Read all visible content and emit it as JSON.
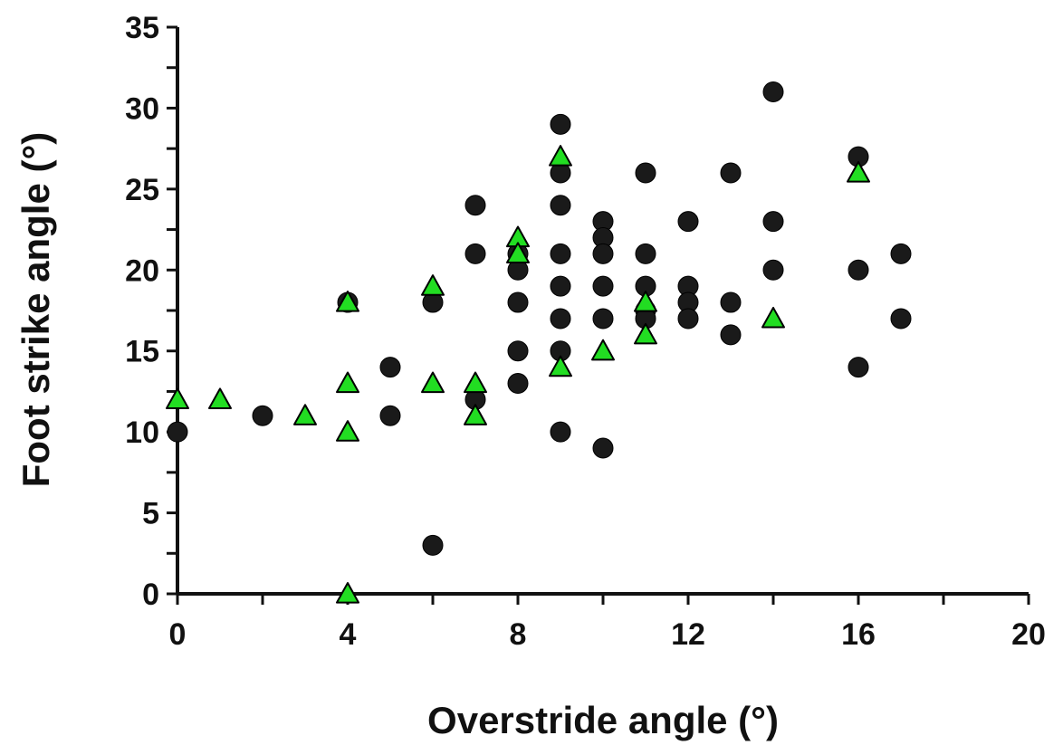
{
  "chart_data": {
    "type": "scatter",
    "xlabel": "Overstride angle (°)",
    "ylabel": "Foot strike angle (°)",
    "xlim": [
      0,
      20
    ],
    "ylim": [
      0,
      35
    ],
    "x_ticks": [
      0,
      4,
      8,
      12,
      16,
      20
    ],
    "x_tick_labels": [
      "0",
      "4",
      "8",
      "12",
      "16",
      "20"
    ],
    "y_ticks": [
      0,
      5,
      10,
      15,
      20,
      25,
      30,
      35
    ],
    "y_tick_labels": [
      "0",
      "5",
      "10",
      "15",
      "20",
      "25",
      "30",
      "35"
    ],
    "grid": false,
    "series": [
      {
        "marker": "circle",
        "color": "#1a1a1a",
        "points": [
          [
            0,
            10
          ],
          [
            2,
            11
          ],
          [
            4,
            18
          ],
          [
            5,
            14
          ],
          [
            5,
            11
          ],
          [
            6,
            18
          ],
          [
            6,
            3
          ],
          [
            7,
            24
          ],
          [
            7,
            21
          ],
          [
            7,
            12
          ],
          [
            8,
            21
          ],
          [
            8,
            20
          ],
          [
            8,
            18
          ],
          [
            8,
            15
          ],
          [
            8,
            13
          ],
          [
            9,
            29
          ],
          [
            9,
            26
          ],
          [
            9,
            24
          ],
          [
            9,
            21
          ],
          [
            9,
            19
          ],
          [
            9,
            17
          ],
          [
            9,
            15
          ],
          [
            9,
            10
          ],
          [
            10,
            23
          ],
          [
            10,
            22
          ],
          [
            10,
            21
          ],
          [
            10,
            19
          ],
          [
            10,
            17
          ],
          [
            10,
            9
          ],
          [
            11,
            26
          ],
          [
            11,
            21
          ],
          [
            11,
            19
          ],
          [
            11,
            17.5
          ],
          [
            11,
            17
          ],
          [
            12,
            23
          ],
          [
            12,
            19
          ],
          [
            12,
            18
          ],
          [
            12,
            17
          ],
          [
            13,
            26
          ],
          [
            13,
            18
          ],
          [
            13,
            16
          ],
          [
            14,
            31
          ],
          [
            14,
            23
          ],
          [
            14,
            20
          ],
          [
            16,
            27
          ],
          [
            16,
            20
          ],
          [
            16,
            14
          ],
          [
            17,
            21
          ],
          [
            17,
            17
          ]
        ]
      },
      {
        "marker": "triangle",
        "color": "#22dd22",
        "points": [
          [
            0,
            12
          ],
          [
            1,
            12
          ],
          [
            3,
            11
          ],
          [
            4,
            18
          ],
          [
            4,
            13
          ],
          [
            4,
            10
          ],
          [
            4,
            0
          ],
          [
            6,
            19
          ],
          [
            6,
            13
          ],
          [
            7,
            13
          ],
          [
            7,
            11
          ],
          [
            8,
            22
          ],
          [
            8,
            21
          ],
          [
            9,
            27
          ],
          [
            9,
            14
          ],
          [
            10,
            15
          ],
          [
            11,
            18
          ],
          [
            11,
            16
          ],
          [
            14,
            17
          ],
          [
            16,
            26
          ]
        ]
      }
    ]
  }
}
